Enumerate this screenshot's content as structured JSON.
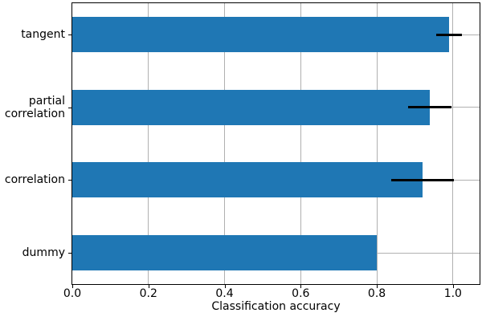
{
  "figure": {
    "background": "#ffffff"
  },
  "chart_data": {
    "type": "bar",
    "orientation": "horizontal",
    "title": "",
    "xlabel": "Classification accuracy",
    "ylabel": "",
    "categories": [
      "tangent",
      "partial correlation",
      "correlation",
      "dummy"
    ],
    "tick_labels": [
      "tangent",
      "partial\ncorrelation",
      "correlation",
      "dummy"
    ],
    "values": [
      0.99,
      0.94,
      0.92,
      0.8
    ],
    "errors": [
      0.034,
      0.057,
      0.082,
      0
    ],
    "xlim": [
      0,
      1.07
    ],
    "xticks": [
      0,
      0.2,
      0.4,
      0.6,
      0.8,
      1.0
    ],
    "xtick_labels": [
      "0.0",
      "0.2",
      "0.4",
      "0.6",
      "0.8",
      "1.0"
    ],
    "grid": true,
    "legend_position": "none",
    "colors": {
      "bar": "#1f77b4",
      "error": "#000000",
      "grid": "#b0b0b0",
      "spine": "#000000",
      "text": "#000000",
      "background": "#ffffff"
    }
  }
}
